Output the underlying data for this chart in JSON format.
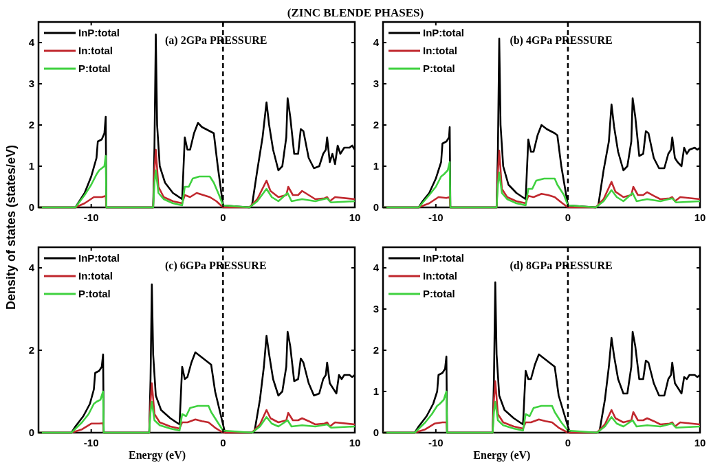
{
  "chart_data": [
    {
      "type": "line",
      "title": "(ZINC BLENDE PHASES)",
      "ylabel": "Density of states (states/eV)",
      "annotations": [
        "(a) 2GPa PRESSURE"
      ],
      "xlim": [
        -14,
        10
      ],
      "xticks": [
        -10,
        0,
        10
      ],
      "ylim": [
        0,
        4.5
      ],
      "yticks": [
        0,
        1,
        2,
        3,
        4
      ],
      "grid": false,
      "legend": "top left",
      "ref_lines": [
        {
          "axis": "x",
          "value": 0,
          "line_style": "dashed",
          "color": "#000000"
        }
      ],
      "series": [
        {
          "name": "InP:total",
          "color": "#000000",
          "x": [
            -14,
            -11.2,
            -11,
            -10.5,
            -10,
            -9.6,
            -9.5,
            -9.2,
            -9,
            -8.9,
            -8.85,
            -5.3,
            -5.2,
            -5.1,
            -5,
            -4.8,
            -4.4,
            -3.8,
            -3.1,
            -2.9,
            -2.7,
            -2.5,
            -2.2,
            -1.9,
            -1.6,
            -1,
            -0.7,
            -0.4,
            0,
            2,
            2.2,
            2.6,
            3,
            3.3,
            3.5,
            3.8,
            4.2,
            4.5,
            4.8,
            4.9,
            5.1,
            5.4,
            5.7,
            5.9,
            6.1,
            6.5,
            6.9,
            7.3,
            7.6,
            7.8,
            7.9,
            8.1,
            8.3,
            8.5,
            8.7,
            8.9,
            9.2,
            9.6,
            9.8,
            10
          ],
          "values": [
            0,
            0,
            0.1,
            0.35,
            0.75,
            1.2,
            1.6,
            1.65,
            1.8,
            2.2,
            0,
            0,
            1.5,
            4.2,
            2,
            1,
            0.6,
            0.35,
            0.2,
            1.7,
            1.4,
            1.4,
            1.8,
            2.05,
            1.95,
            1.85,
            1.8,
            1,
            0.05,
            0,
            0.05,
            0.9,
            1.7,
            2.55,
            2,
            1.4,
            0.9,
            1,
            1.7,
            2.65,
            2.2,
            1.3,
            1.3,
            1.9,
            1.85,
            1.2,
            0.95,
            1,
            1.3,
            1.4,
            1.7,
            1.1,
            1.3,
            1.05,
            1.5,
            1.3,
            1.45,
            1.45,
            1.5,
            1.4
          ]
        },
        {
          "name": "In:total",
          "color": "#c0272d",
          "x": [
            -14,
            -11.2,
            -10.5,
            -9.8,
            -9.2,
            -8.9,
            -8.85,
            -5.3,
            -5.2,
            -5.1,
            -4.9,
            -4.5,
            -3.8,
            -3.1,
            -2.9,
            -2.5,
            -2,
            -1.5,
            -1,
            -0.5,
            0,
            2,
            2.6,
            3.3,
            3.6,
            4.2,
            4.8,
            4.95,
            5.3,
            5.7,
            6,
            6.5,
            7,
            7.7,
            7.9,
            8.1,
            8.5,
            10
          ],
          "values": [
            0,
            0,
            0.1,
            0.25,
            0.25,
            0.28,
            0,
            0,
            0.9,
            1.4,
            0.5,
            0.25,
            0.15,
            0.1,
            0.3,
            0.25,
            0.35,
            0.3,
            0.25,
            0.15,
            0,
            0,
            0.2,
            0.65,
            0.4,
            0.25,
            0.3,
            0.5,
            0.3,
            0.3,
            0.4,
            0.3,
            0.2,
            0.22,
            0.25,
            0.15,
            0.25,
            0.2
          ]
        },
        {
          "name": "P:total",
          "color": "#3fd13f",
          "x": [
            -14,
            -11.2,
            -10.5,
            -10,
            -9.6,
            -9.4,
            -9,
            -8.9,
            -8.85,
            -5.3,
            -5.2,
            -5.1,
            -4.9,
            -4.5,
            -3.8,
            -3.1,
            -2.9,
            -2.6,
            -2.3,
            -1.8,
            -1,
            -0.7,
            -0.3,
            0,
            2,
            2.6,
            3.3,
            3.7,
            4.2,
            4.9,
            5.2,
            6,
            7,
            7.9,
            8.2,
            10
          ],
          "values": [
            0,
            0,
            0.3,
            0.55,
            0.8,
            0.9,
            1,
            1.25,
            0,
            0,
            0.6,
            0.9,
            0.35,
            0.2,
            0.1,
            0.05,
            0.5,
            0.5,
            0.7,
            0.75,
            0.75,
            0.6,
            0.3,
            0.05,
            0,
            0.15,
            0.45,
            0.25,
            0.15,
            0.35,
            0.15,
            0.2,
            0.15,
            0.22,
            0.12,
            0.15
          ]
        }
      ]
    },
    {
      "type": "line",
      "annotations": [
        "(b) 4GPa PRESSURE"
      ],
      "xlim": [
        -14,
        10
      ],
      "xticks": [
        -10,
        0,
        10
      ],
      "ylim": [
        0,
        4.5
      ],
      "yticks": [
        0,
        1,
        2,
        3,
        4
      ],
      "grid": false,
      "legend": "top left",
      "ref_lines": [
        {
          "axis": "x",
          "value": 0,
          "line_style": "dashed",
          "color": "#000000"
        }
      ],
      "series": [
        {
          "name": "InP:total",
          "color": "#000000",
          "x": [
            -14,
            -11.3,
            -11,
            -10.5,
            -10,
            -9.6,
            -9.5,
            -9.2,
            -9,
            -8.95,
            -8.9,
            -5.4,
            -5.3,
            -5.2,
            -5.1,
            -4.9,
            -4.5,
            -3.9,
            -3.2,
            -3,
            -2.8,
            -2.6,
            -2.3,
            -2,
            -1.6,
            -1,
            -0.8,
            -0.5,
            0,
            2.1,
            2.3,
            2.7,
            3.1,
            3.3,
            3.5,
            3.8,
            4.2,
            4.5,
            4.8,
            4.9,
            5.1,
            5.4,
            5.7,
            5.9,
            6.1,
            6.5,
            6.9,
            7.3,
            7.6,
            7.8,
            7.9,
            8.1,
            8.3,
            8.6,
            8.8,
            9,
            9.2,
            9.6,
            9.8,
            10
          ],
          "values": [
            0,
            0,
            0.15,
            0.35,
            0.7,
            1.1,
            1.55,
            1.6,
            1.7,
            1.95,
            0,
            0,
            1.4,
            4.1,
            2,
            1,
            0.55,
            0.35,
            0.2,
            1.65,
            1.35,
            1.35,
            1.75,
            2,
            1.9,
            1.8,
            1.75,
            1,
            0.05,
            0,
            0.05,
            0.9,
            1.6,
            2.5,
            1.95,
            1.35,
            0.9,
            1,
            1.6,
            2.65,
            2.2,
            1.25,
            1.3,
            1.85,
            1.8,
            1.2,
            0.95,
            0.95,
            1.3,
            1.4,
            1.7,
            1.2,
            1.1,
            1,
            1.45,
            1.3,
            1.4,
            1.45,
            1.4,
            1.45
          ]
        },
        {
          "name": "In:total",
          "color": "#c0272d",
          "x": [
            -14,
            -11.3,
            -10.5,
            -9.8,
            -9.2,
            -8.95,
            -8.9,
            -5.4,
            -5.3,
            -5.2,
            -5,
            -4.6,
            -3.9,
            -3.2,
            -3,
            -2.6,
            -2,
            -1.5,
            -1,
            -0.5,
            0,
            2.1,
            2.7,
            3.3,
            3.6,
            4.2,
            4.8,
            4.95,
            5.3,
            5.7,
            6,
            6.5,
            7,
            7.7,
            7.9,
            8.1,
            8.5,
            10
          ],
          "values": [
            0,
            0,
            0.1,
            0.25,
            0.23,
            0.25,
            0,
            0,
            0.85,
            1.38,
            0.45,
            0.25,
            0.15,
            0.1,
            0.28,
            0.25,
            0.33,
            0.3,
            0.25,
            0.12,
            0,
            0,
            0.2,
            0.62,
            0.38,
            0.25,
            0.3,
            0.5,
            0.3,
            0.3,
            0.37,
            0.28,
            0.2,
            0.22,
            0.25,
            0.15,
            0.25,
            0.2
          ]
        },
        {
          "name": "P:total",
          "color": "#3fd13f",
          "x": [
            -14,
            -11.3,
            -10.5,
            -10,
            -9.6,
            -9.4,
            -9.1,
            -8.95,
            -8.9,
            -5.4,
            -5.3,
            -5.2,
            -5,
            -4.6,
            -3.9,
            -3.2,
            -3,
            -2.7,
            -2.4,
            -1.8,
            -1,
            -0.8,
            -0.3,
            0,
            2.1,
            2.7,
            3.3,
            3.7,
            4.2,
            4.9,
            5.2,
            6,
            7,
            7.9,
            8.2,
            10
          ],
          "values": [
            0,
            0,
            0.3,
            0.5,
            0.75,
            0.8,
            0.9,
            1.1,
            0,
            0,
            0.55,
            0.85,
            0.35,
            0.2,
            0.1,
            0.05,
            0.45,
            0.45,
            0.65,
            0.7,
            0.7,
            0.55,
            0.3,
            0.05,
            0,
            0.15,
            0.42,
            0.25,
            0.15,
            0.35,
            0.15,
            0.2,
            0.15,
            0.22,
            0.12,
            0.15
          ]
        }
      ]
    },
    {
      "type": "line",
      "xlabel": "Energy (eV)",
      "annotations": [
        "(c) 6GPa PRESSURE"
      ],
      "xlim": [
        -14,
        10
      ],
      "xticks": [
        -10,
        0,
        10
      ],
      "ylim": [
        0,
        4.5
      ],
      "yticks": [
        0,
        2,
        4
      ],
      "grid": false,
      "legend": "top left",
      "ref_lines": [
        {
          "axis": "x",
          "value": 0,
          "line_style": "dashed",
          "color": "#000000"
        }
      ],
      "series": [
        {
          "name": "InP:total",
          "color": "#000000",
          "x": [
            -14,
            -11.5,
            -11.2,
            -10.6,
            -10.1,
            -9.8,
            -9.7,
            -9.4,
            -9.2,
            -9.1,
            -9.05,
            -5.6,
            -5.5,
            -5.4,
            -5.3,
            -5.1,
            -4.7,
            -4,
            -3.3,
            -3.1,
            -2.9,
            -2.7,
            -2.4,
            -2.1,
            -1.7,
            -1.1,
            -0.9,
            -0.6,
            0,
            0.15,
            2.2,
            2.4,
            2.8,
            3.1,
            3.3,
            3.5,
            3.8,
            4.2,
            4.5,
            4.8,
            4.9,
            5.1,
            5.4,
            5.7,
            5.9,
            6.1,
            6.5,
            6.9,
            7.3,
            7.6,
            7.8,
            7.9,
            8.1,
            8.3,
            8.6,
            8.8,
            9,
            9.2,
            9.6,
            9.8,
            10
          ],
          "values": [
            0,
            0,
            0.15,
            0.4,
            0.7,
            1.05,
            1.45,
            1.5,
            1.6,
            1.9,
            0,
            0,
            1.3,
            3.6,
            1.9,
            0.9,
            0.55,
            0.35,
            0.2,
            1.6,
            1.3,
            1.35,
            1.7,
            1.95,
            1.85,
            1.7,
            1.65,
            1,
            0.2,
            0,
            0,
            0.05,
            0.8,
            1.6,
            2.35,
            1.9,
            1.3,
            0.9,
            1,
            1.6,
            2.45,
            2.1,
            1.25,
            1.3,
            1.8,
            1.7,
            1.2,
            0.9,
            0.95,
            1.3,
            1.4,
            1.7,
            1.2,
            1.1,
            0.95,
            1.4,
            1.3,
            1.4,
            1.4,
            1.35,
            1.4
          ]
        },
        {
          "name": "In:total",
          "color": "#c0272d",
          "x": [
            -14,
            -11.5,
            -10.7,
            -10,
            -9.4,
            -9.1,
            -9.05,
            -5.6,
            -5.5,
            -5.4,
            -5.2,
            -4.8,
            -4,
            -3.3,
            -3.1,
            -2.7,
            -2.1,
            -1.6,
            -1.1,
            -0.6,
            0,
            2.2,
            2.8,
            3.3,
            3.6,
            4.2,
            4.8,
            4.95,
            5.3,
            5.7,
            6,
            6.5,
            7,
            7.7,
            7.9,
            8.1,
            8.5,
            10
          ],
          "values": [
            0,
            0,
            0.08,
            0.22,
            0.22,
            0.23,
            0,
            0,
            0.75,
            1.2,
            0.45,
            0.25,
            0.15,
            0.1,
            0.25,
            0.25,
            0.32,
            0.28,
            0.25,
            0.12,
            0,
            0,
            0.2,
            0.55,
            0.35,
            0.25,
            0.3,
            0.48,
            0.3,
            0.3,
            0.35,
            0.28,
            0.2,
            0.22,
            0.25,
            0.15,
            0.25,
            0.2
          ]
        },
        {
          "name": "P:total",
          "color": "#3fd13f",
          "x": [
            -14,
            -11.5,
            -10.7,
            -10.2,
            -9.8,
            -9.6,
            -9.3,
            -9.1,
            -9.05,
            -5.6,
            -5.5,
            -5.4,
            -5.2,
            -4.8,
            -4,
            -3.3,
            -3.1,
            -2.8,
            -2.5,
            -1.9,
            -1.1,
            -0.9,
            -0.4,
            0,
            2.2,
            2.8,
            3.3,
            3.7,
            4.2,
            4.9,
            5.2,
            6,
            7,
            7.9,
            8.2,
            10
          ],
          "values": [
            0,
            0,
            0.25,
            0.45,
            0.7,
            0.75,
            0.8,
            1,
            0,
            0,
            0.5,
            0.75,
            0.3,
            0.18,
            0.1,
            0.05,
            0.45,
            0.4,
            0.6,
            0.65,
            0.65,
            0.5,
            0.25,
            0.05,
            0,
            0.15,
            0.38,
            0.22,
            0.15,
            0.3,
            0.15,
            0.18,
            0.15,
            0.2,
            0.12,
            0.15
          ]
        }
      ]
    },
    {
      "type": "line",
      "xlabel": "Energy (eV)",
      "annotations": [
        "(d) 8GPa PRESSURE"
      ],
      "xlim": [
        -14,
        10
      ],
      "xticks": [
        -10,
        0,
        10
      ],
      "ylim": [
        0,
        4.5
      ],
      "yticks": [
        0,
        1,
        2,
        3,
        4
      ],
      "grid": false,
      "legend": "top left",
      "ref_lines": [
        {
          "axis": "x",
          "value": 0,
          "line_style": "dashed",
          "color": "#000000"
        }
      ],
      "series": [
        {
          "name": "InP:total",
          "color": "#000000",
          "x": [
            -14,
            -11.6,
            -11.3,
            -10.7,
            -10.2,
            -9.9,
            -9.8,
            -9.5,
            -9.3,
            -9.2,
            -9.15,
            -5.7,
            -5.6,
            -5.5,
            -5.4,
            -5.2,
            -4.8,
            -4.1,
            -3.4,
            -3.2,
            -3,
            -2.8,
            -2.5,
            -2.2,
            -1.8,
            -1.2,
            -1,
            -0.7,
            0,
            0.15,
            2.2,
            2.4,
            2.8,
            3.1,
            3.3,
            3.5,
            3.8,
            4.2,
            4.5,
            4.8,
            4.9,
            5.1,
            5.4,
            5.7,
            5.9,
            6.1,
            6.5,
            6.9,
            7.3,
            7.6,
            7.8,
            7.9,
            8.1,
            8.3,
            8.6,
            8.8,
            9,
            9.2,
            9.6,
            9.8,
            10
          ],
          "values": [
            0,
            0,
            0.15,
            0.4,
            0.7,
            1,
            1.4,
            1.45,
            1.55,
            1.85,
            0,
            0,
            1.3,
            3.65,
            1.9,
            0.9,
            0.55,
            0.35,
            0.2,
            1.5,
            1.3,
            1.3,
            1.65,
            1.9,
            1.8,
            1.65,
            1.6,
            0.9,
            0.15,
            0,
            0,
            0.05,
            0.8,
            1.6,
            2.3,
            1.85,
            1.3,
            0.95,
            0.95,
            1.6,
            2.45,
            2.1,
            1.3,
            1.3,
            1.75,
            1.7,
            1.2,
            0.9,
            0.9,
            1.3,
            1.4,
            1.7,
            1.2,
            1.1,
            0.95,
            1.35,
            1.3,
            1.4,
            1.4,
            1.35,
            1.4
          ]
        },
        {
          "name": "In:total",
          "color": "#c0272d",
          "x": [
            -14,
            -11.6,
            -10.8,
            -10.1,
            -9.5,
            -9.2,
            -9.15,
            -5.7,
            -5.6,
            -5.5,
            -5.3,
            -4.9,
            -4.1,
            -3.4,
            -3.2,
            -2.8,
            -2.2,
            -1.7,
            -1.2,
            -0.7,
            0,
            2.2,
            2.8,
            3.3,
            3.6,
            4.2,
            4.8,
            4.95,
            5.3,
            5.7,
            6,
            6.5,
            7,
            7.7,
            7.9,
            8.1,
            8.5,
            10
          ],
          "values": [
            0,
            0,
            0.08,
            0.22,
            0.25,
            0.25,
            0,
            0,
            0.8,
            1.25,
            0.45,
            0.25,
            0.15,
            0.1,
            0.25,
            0.25,
            0.32,
            0.28,
            0.25,
            0.12,
            0,
            0,
            0.2,
            0.55,
            0.35,
            0.25,
            0.3,
            0.5,
            0.3,
            0.3,
            0.35,
            0.28,
            0.2,
            0.22,
            0.25,
            0.15,
            0.25,
            0.2
          ]
        },
        {
          "name": "P:total",
          "color": "#3fd13f",
          "x": [
            -14,
            -11.6,
            -10.8,
            -10.3,
            -9.9,
            -9.7,
            -9.4,
            -9.2,
            -9.15,
            -5.7,
            -5.6,
            -5.5,
            -5.3,
            -4.9,
            -4.1,
            -3.4,
            -3.2,
            -2.9,
            -2.6,
            -2,
            -1.2,
            -1,
            -0.5,
            0,
            2.2,
            2.8,
            3.3,
            3.7,
            4.2,
            4.9,
            5.2,
            6,
            7,
            7.9,
            8.2,
            10
          ],
          "values": [
            0,
            0,
            0.25,
            0.45,
            0.65,
            0.7,
            0.8,
            1,
            0,
            0,
            0.5,
            0.75,
            0.3,
            0.18,
            0.1,
            0.05,
            0.45,
            0.4,
            0.6,
            0.65,
            0.65,
            0.5,
            0.25,
            0.05,
            0,
            0.15,
            0.38,
            0.22,
            0.15,
            0.3,
            0.15,
            0.18,
            0.15,
            0.22,
            0.12,
            0.15
          ]
        }
      ]
    }
  ]
}
